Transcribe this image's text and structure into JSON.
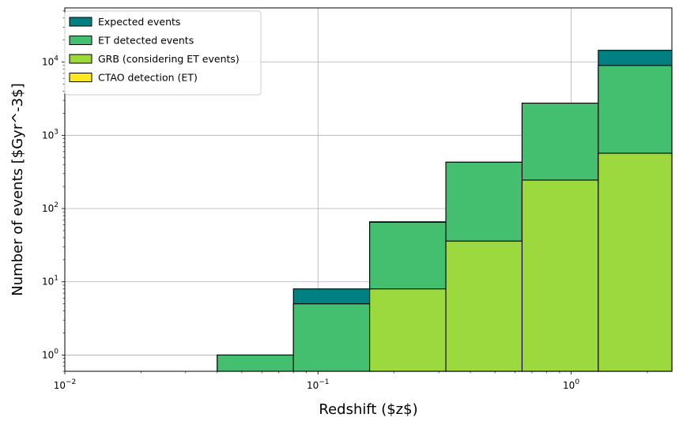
{
  "chart_data": {
    "type": "bar",
    "subtype": "stacked-histogram-overlay",
    "title": "",
    "xlabel": "Redshift ($z$)",
    "ylabel": "Number of events [$Gyr^-3$]",
    "xscale": "log",
    "yscale": "log",
    "xlim": [
      0.01,
      2.5
    ],
    "ylim": [
      0.6,
      55000
    ],
    "grid": true,
    "legend_position": "top-left",
    "bin_edges": [
      0.04,
      0.08,
      0.16,
      0.32,
      0.64,
      1.28,
      2.5
    ],
    "x_ticks": [
      {
        "value": 0.01,
        "base": "10",
        "exp": "−2"
      },
      {
        "value": 0.1,
        "base": "10",
        "exp": "−1"
      },
      {
        "value": 1,
        "base": "10",
        "exp": "0"
      }
    ],
    "y_ticks": [
      {
        "value": 1,
        "base": "10",
        "exp": "0"
      },
      {
        "value": 10,
        "base": "10",
        "exp": "1"
      },
      {
        "value": 100,
        "base": "10",
        "exp": "2"
      },
      {
        "value": 1000,
        "base": "10",
        "exp": "3"
      },
      {
        "value": 10000,
        "base": "10",
        "exp": "4"
      }
    ],
    "series": [
      {
        "name": "Expected events",
        "color": "#008080",
        "values": [
          1,
          8,
          66,
          430,
          2750,
          14500
        ]
      },
      {
        "name": "ET detected events",
        "color": "#44bf70",
        "values": [
          1,
          5,
          65,
          430,
          2750,
          9000
        ]
      },
      {
        "name": "GRB (considering ET events)",
        "color": "#9bd93c",
        "values": [
          0,
          0,
          8,
          36,
          245,
          570
        ]
      },
      {
        "name": "CTAO detection (ET)",
        "color": "#fde725",
        "values": [
          0,
          0,
          0,
          0,
          0,
          0
        ]
      }
    ]
  }
}
